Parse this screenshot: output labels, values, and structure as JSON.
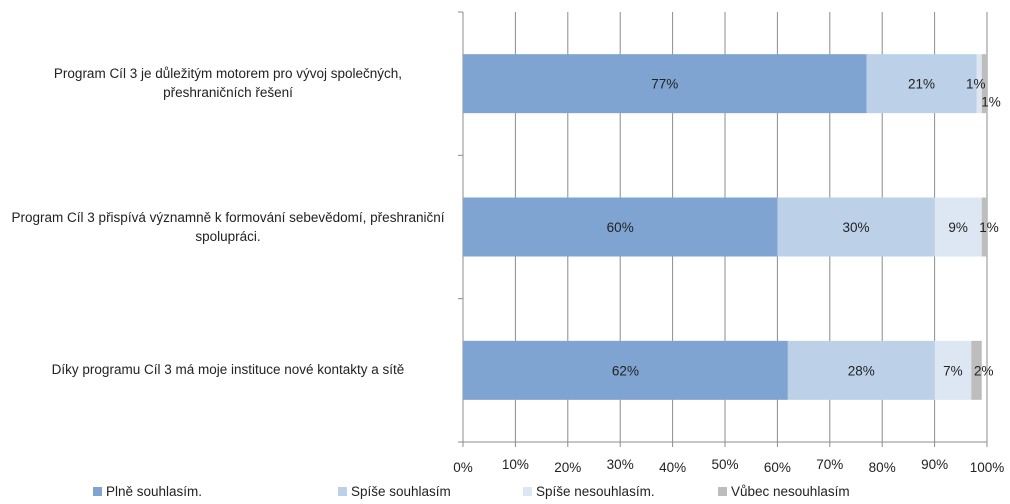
{
  "chart_data": {
    "type": "bar",
    "orientation": "horizontal",
    "stacked": true,
    "categories": [
      "Program Cíl 3 je důležitým motorem pro vývoj společných, přeshraničních řešení",
      "Program Cíl 3 přispívá významně k formování sebevědomí, přeshraniční spolupráci.",
      "Díky programu Cíl 3 má moje instituce nové kontakty a sítě"
    ],
    "series": [
      {
        "name": "Plně souhlasím.",
        "color": "#7fa4d1",
        "values": [
          77,
          60,
          62
        ],
        "labels": [
          "77%",
          "60%",
          "62%"
        ]
      },
      {
        "name": "Spíše souhlasím",
        "color": "#bcd0e8",
        "values": [
          21,
          30,
          28
        ],
        "labels": [
          "21%",
          "30%",
          "28%"
        ]
      },
      {
        "name": "Spíše nesouhlasím.",
        "color": "#dce7f3",
        "values": [
          1,
          9,
          7
        ],
        "labels": [
          "1%",
          "9%",
          "7%"
        ]
      },
      {
        "name": "Vůbec nesouhlasím",
        "color": "#bdbdbd",
        "values": [
          1,
          1,
          2
        ],
        "labels": [
          "1%",
          "1%",
          "2%"
        ]
      }
    ],
    "x_ticks": [
      "0%",
      "10%",
      "20%",
      "30%",
      "40%",
      "50%",
      "60%",
      "70%",
      "80%",
      "90%",
      "100%"
    ],
    "xlim": [
      0,
      100
    ],
    "grid": true,
    "legend_position": "bottom"
  }
}
